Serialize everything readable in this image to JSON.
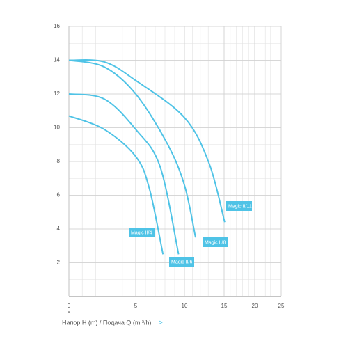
{
  "chart_data": {
    "type": "line",
    "xlabel": "Напор H (m) /  Подача Q (m ³/h)",
    "xlim": [
      0,
      25
    ],
    "xticks": [
      0,
      5,
      10,
      15,
      20,
      25
    ],
    "ylim": [
      0,
      16
    ],
    "yticks": [
      2,
      4,
      6,
      8,
      10,
      12,
      14,
      16
    ],
    "grid": true,
    "series": [
      {
        "name": "Magic II/4",
        "color": "#4fc3e6",
        "x": [
          0,
          2.65,
          5,
          6.4,
          7.8
        ],
        "values": [
          10.7,
          9.9,
          8.3,
          6.4,
          2.5
        ]
      },
      {
        "name": "Magic II/6",
        "color": "#4fc3e6",
        "x": [
          0,
          2.65,
          5,
          7.5,
          9.4
        ],
        "values": [
          12,
          11.7,
          9.9,
          7.7,
          2.5
        ]
      },
      {
        "name": "Magic II/8",
        "color": "#4fc3e6",
        "x": [
          0,
          2.65,
          5,
          8.2,
          10,
          11.4
        ],
        "values": [
          14,
          13.6,
          12,
          9.1,
          6.6,
          3.5
        ]
      },
      {
        "name": "Magic II/11",
        "color": "#4fc3e6",
        "x": [
          0,
          2.65,
          5,
          10,
          13.1,
          15.1
        ],
        "values": [
          14,
          13.9,
          12.8,
          10.6,
          7.9,
          4.4
        ]
      }
    ]
  }
}
